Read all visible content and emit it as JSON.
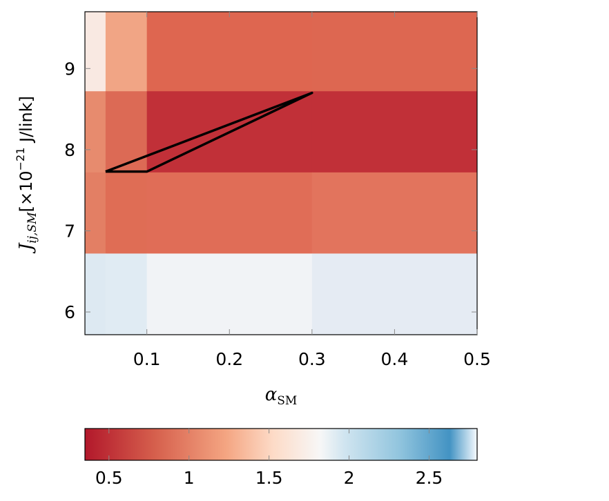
{
  "chart_data": {
    "type": "heatmap",
    "title": "",
    "xlabel": "α",
    "xlabel_sub": "SM",
    "ylabel_main": "J",
    "ylabel_sub": "ij,SM",
    "ylabel_unit": "[×10",
    "ylabel_exp": "−21",
    "ylabel_unit_tail": " J/link]",
    "xlim": [
      0.025,
      0.5
    ],
    "ylim": [
      5.72,
      9.7
    ],
    "x_ticks": [
      0.1,
      0.2,
      0.3,
      0.4,
      0.5
    ],
    "x_tick_labels": [
      "0.1",
      "0.2",
      "0.3",
      "0.4",
      "0.5"
    ],
    "y_ticks": [
      6,
      7,
      8,
      9
    ],
    "y_tick_labels": [
      "6",
      "7",
      "8",
      "9"
    ],
    "x_edges": [
      0.025,
      0.05,
      0.1,
      0.3,
      0.5
    ],
    "y_edges": [
      5.72,
      6.72,
      7.72,
      8.72,
      9.7
    ],
    "cells": [
      [
        0.025,
        0.05,
        8.72,
        9.7,
        "#f9e9e2"
      ],
      [
        0.05,
        0.1,
        8.72,
        9.7,
        "#f1a585"
      ],
      [
        0.1,
        0.3,
        8.72,
        9.7,
        "#de6650"
      ],
      [
        0.3,
        0.5,
        8.72,
        9.7,
        "#dd6751"
      ],
      [
        0.025,
        0.05,
        7.72,
        8.72,
        "#e78b6e"
      ],
      [
        0.05,
        0.1,
        7.72,
        8.72,
        "#dc6a55"
      ],
      [
        0.1,
        0.3,
        7.72,
        8.72,
        "#c13038"
      ],
      [
        0.3,
        0.5,
        7.72,
        8.72,
        "#c13038"
      ],
      [
        0.025,
        0.05,
        6.72,
        7.72,
        "#e37f64"
      ],
      [
        0.05,
        0.1,
        6.72,
        7.72,
        "#df6d55"
      ],
      [
        0.1,
        0.3,
        6.72,
        7.72,
        "#e06d57"
      ],
      [
        0.3,
        0.5,
        6.72,
        7.72,
        "#e2745d"
      ],
      [
        0.025,
        0.05,
        5.72,
        6.72,
        "#dde9f2"
      ],
      [
        0.05,
        0.1,
        5.72,
        6.72,
        "#e0ebf3"
      ],
      [
        0.1,
        0.3,
        5.72,
        6.72,
        "#f1f3f6"
      ],
      [
        0.3,
        0.5,
        5.72,
        6.72,
        "#e5ebf3"
      ]
    ],
    "outline": {
      "points": [
        [
          0.05,
          7.73
        ],
        [
          0.1,
          7.73
        ],
        [
          0.3,
          8.7
        ],
        [
          0.05,
          7.73
        ]
      ],
      "color": "#000000"
    },
    "colorbar": {
      "range": [
        0.35,
        2.8
      ],
      "ticks": [
        0.5,
        1,
        1.5,
        2,
        2.5
      ],
      "tick_labels": [
        "0.5",
        "1",
        "1.5",
        "2",
        "2.5"
      ],
      "colors": [
        "#b2182b",
        "#d6604d",
        "#f4a582",
        "#fddbc7",
        "#f7f7f7",
        "#d1e5f0",
        "#92c5de",
        "#4393c3",
        "#f7fbff"
      ],
      "stops": [
        0,
        0.18,
        0.36,
        0.48,
        0.6,
        0.66,
        0.8,
        0.93,
        1
      ]
    }
  }
}
